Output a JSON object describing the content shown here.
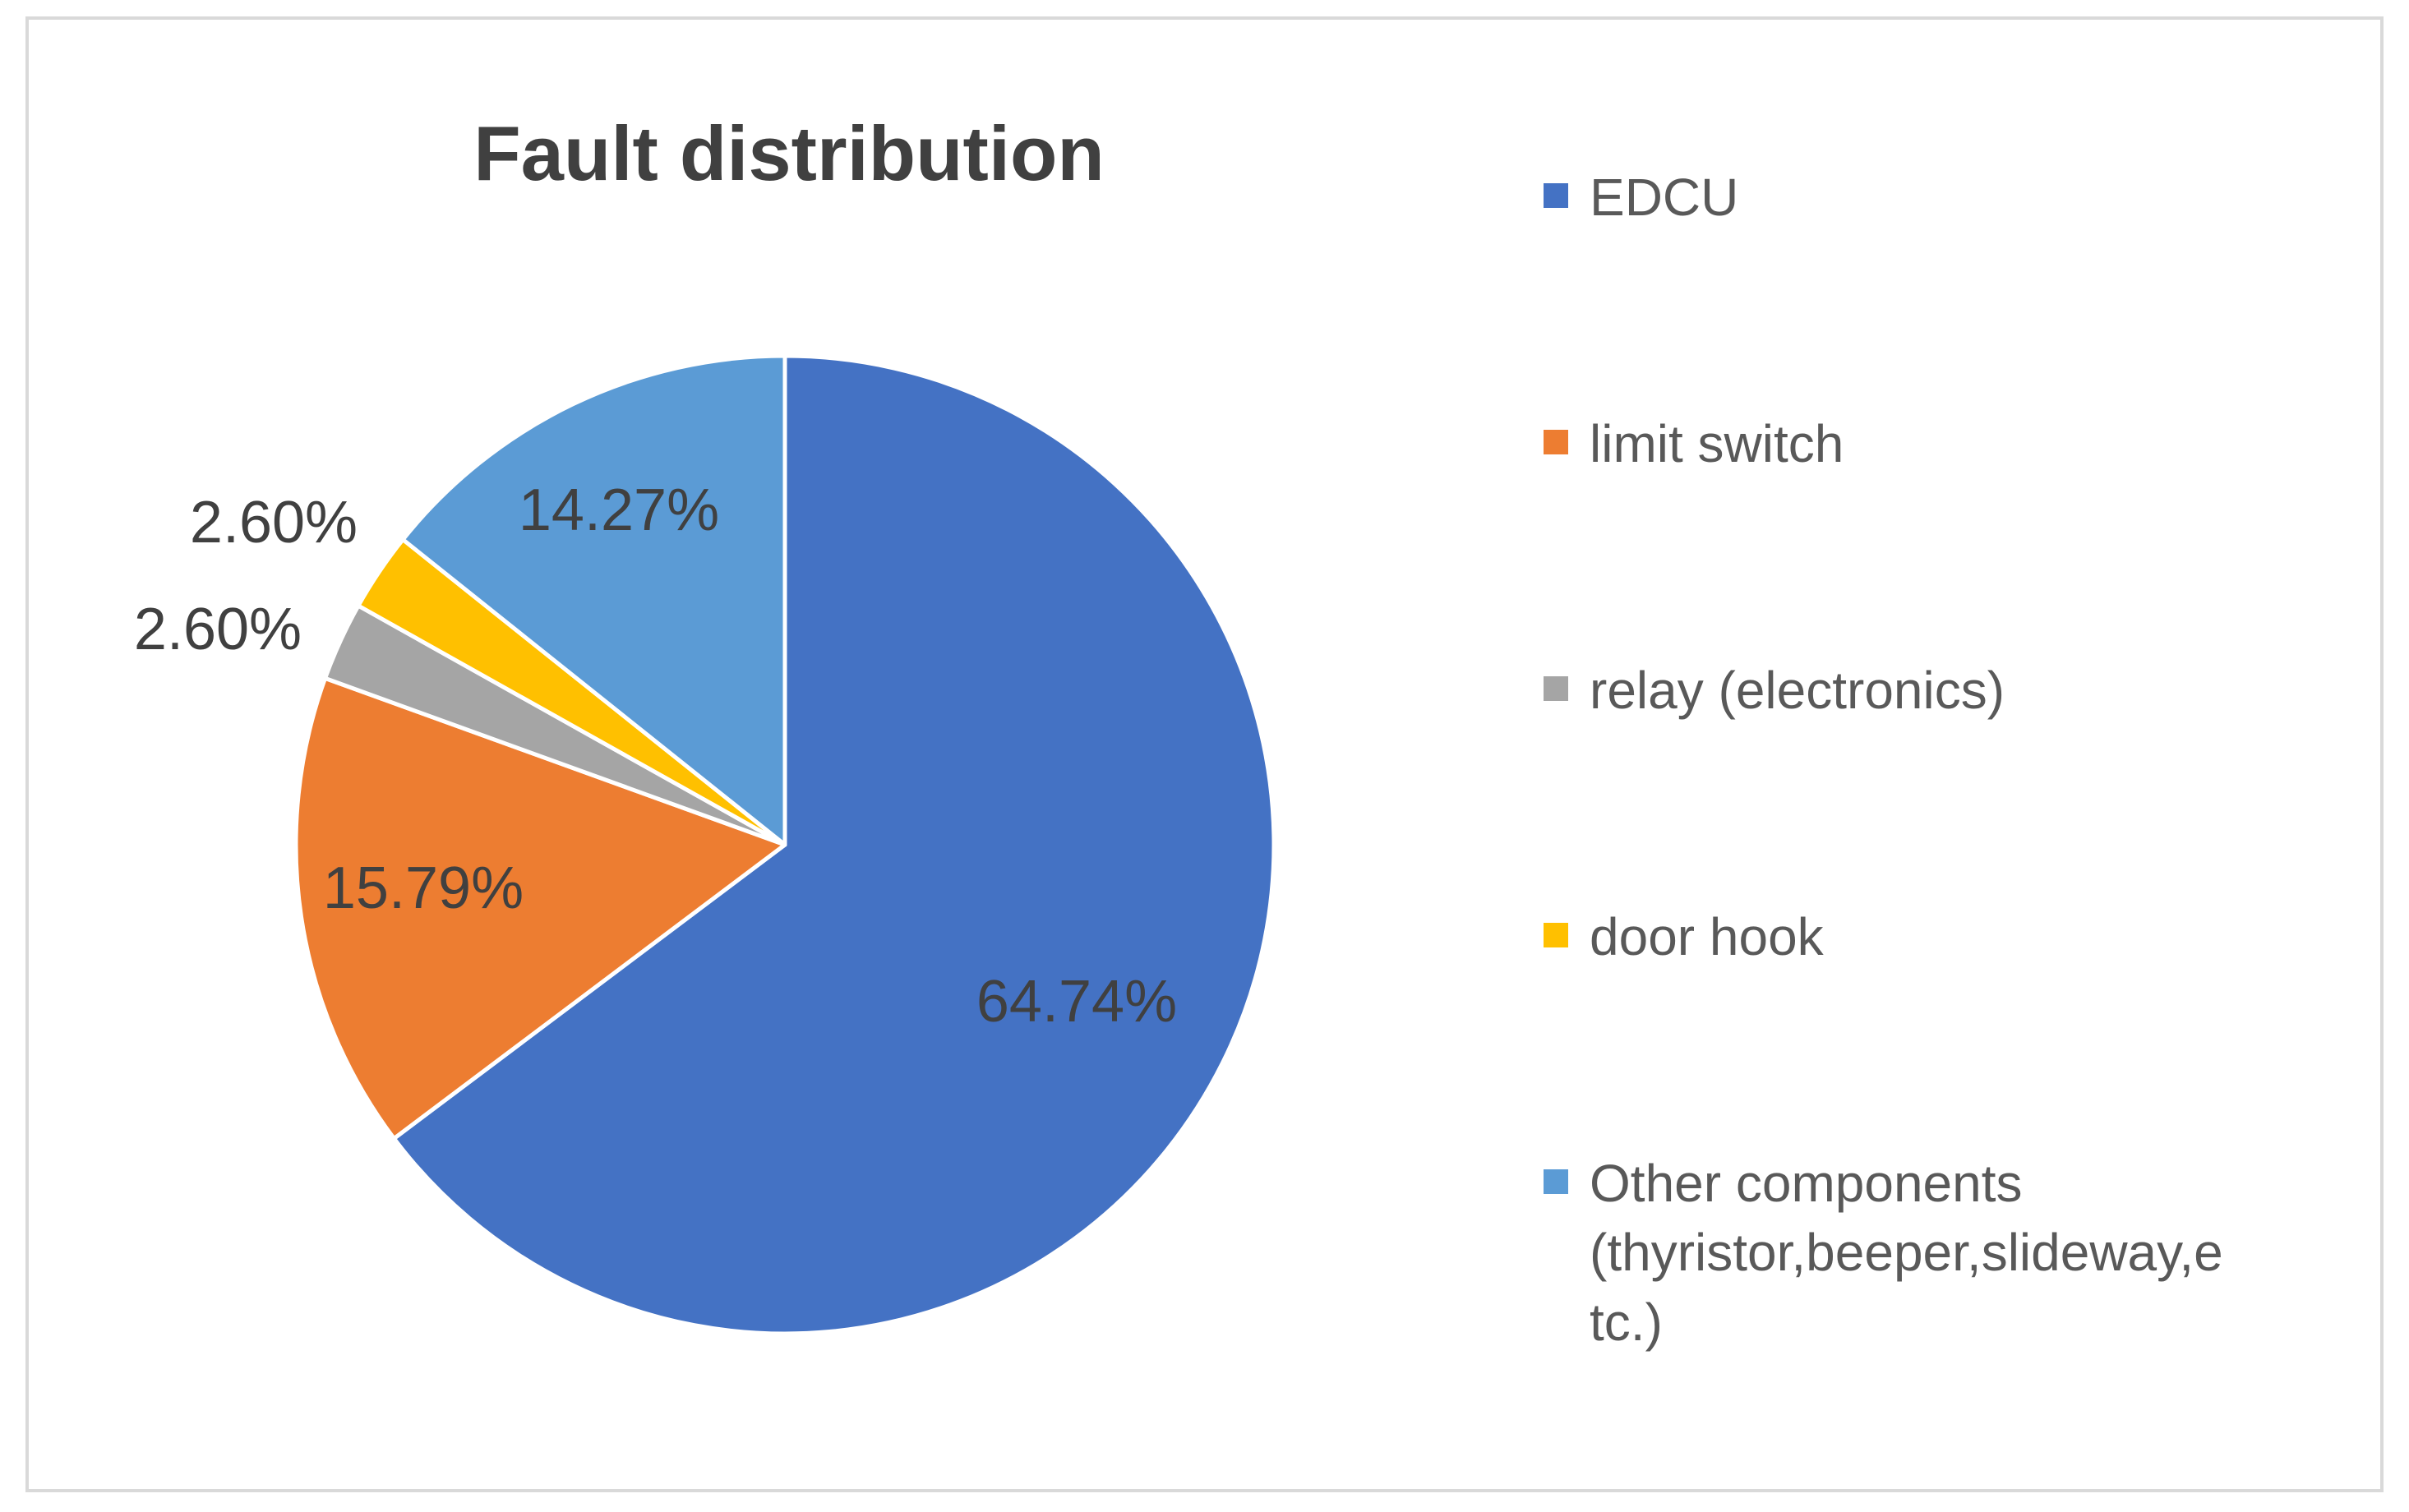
{
  "chart_data": {
    "type": "pie",
    "title": "Fault distribution",
    "slices": [
      {
        "name": "EDCU",
        "value": 64.74,
        "label": "64.74%",
        "color": "#4472C4"
      },
      {
        "name": "limit switch",
        "value": 15.79,
        "label": "15.79%",
        "color": "#ED7D31"
      },
      {
        "name": "relay (electronics)",
        "value": 2.6,
        "label": "2.60%",
        "color": "#A5A5A5"
      },
      {
        "name": "door hook",
        "value": 2.6,
        "label": "2.60%",
        "color": "#FFC000"
      },
      {
        "name": "Other components (thyristor,beeper,slideway,etc.)",
        "value": 14.27,
        "label": "14.27%",
        "color": "#5B9BD5"
      }
    ],
    "legend_position": "right"
  }
}
